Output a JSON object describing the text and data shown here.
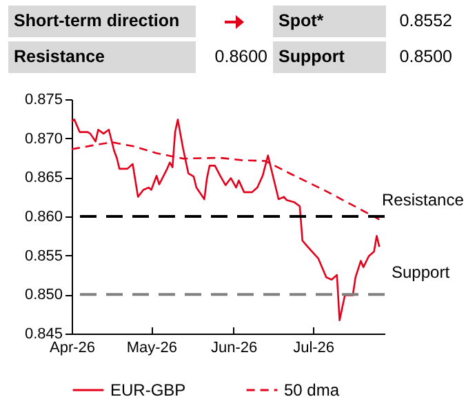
{
  "chart_data": {
    "type": "line",
    "annotations": [
      "Short-term direction",
      "Spot*",
      "0.8552",
      "Resistance",
      "0.8600",
      "Support",
      "0.8500"
    ],
    "xlim": [
      "2026-04-01",
      "2026-07-28"
    ],
    "xticks": [
      {
        "value": "2026-04-01",
        "label": "Apr-26"
      },
      {
        "value": "2026-05-01",
        "label": "May-26"
      },
      {
        "value": "2026-06-01",
        "label": "Jun-26"
      },
      {
        "value": "2026-07-01",
        "label": "Jul-26"
      }
    ],
    "ylim": [
      0.845,
      0.875
    ],
    "yticks": [
      0.845,
      {
        "value": 0.85,
        "label": "0.850"
      },
      0.855,
      {
        "value": 0.86,
        "label": "0.860"
      },
      0.865,
      {
        "value": 0.87,
        "label": "0.870"
      },
      0.875
    ],
    "grid": false,
    "legend": "bottom",
    "series": [
      {
        "name": "EUR-GBP",
        "color": "#e3001b",
        "line_style": "solid",
        "x": [
          "2026-04-01",
          "2026-04-02",
          "2026-04-04",
          "2026-04-07",
          "2026-04-08",
          "2026-04-10",
          "2026-04-11",
          "2026-04-13",
          "2026-04-15",
          "2026-04-17",
          "2026-04-18",
          "2026-04-19",
          "2026-04-22",
          "2026-04-24",
          "2026-04-26",
          "2026-04-28",
          "2026-04-30",
          "2026-05-01",
          "2026-05-03",
          "2026-05-04",
          "2026-05-07",
          "2026-05-08",
          "2026-05-09",
          "2026-05-10",
          "2026-05-11",
          "2026-05-13",
          "2026-05-15",
          "2026-05-17",
          "2026-05-18",
          "2026-05-21",
          "2026-05-22",
          "2026-05-23",
          "2026-05-25",
          "2026-05-27",
          "2026-05-29",
          "2026-05-31",
          "2026-06-02",
          "2026-06-03",
          "2026-06-05",
          "2026-06-08",
          "2026-06-10",
          "2026-06-12",
          "2026-06-14",
          "2026-06-15",
          "2026-06-18",
          "2026-06-20",
          "2026-06-21",
          "2026-06-24",
          "2026-06-26",
          "2026-06-27",
          "2026-06-29",
          "2026-07-03",
          "2026-07-06",
          "2026-07-08",
          "2026-07-10",
          "2026-07-11",
          "2026-07-13",
          "2026-07-16",
          "2026-07-17",
          "2026-07-19",
          "2026-07-20",
          "2026-07-22",
          "2026-07-24",
          "2026-07-25",
          "2026-07-26"
        ],
        "values": [
          0.8722,
          0.8724,
          0.8708,
          0.8708,
          0.8706,
          0.8696,
          0.8711,
          0.8706,
          0.8711,
          0.8684,
          0.8675,
          0.8661,
          0.8661,
          0.8667,
          0.8625,
          0.8634,
          0.8637,
          0.8634,
          0.8652,
          0.8641,
          0.8661,
          0.8669,
          0.8663,
          0.8708,
          0.8724,
          0.8687,
          0.8655,
          0.8651,
          0.8637,
          0.8622,
          0.8649,
          0.8665,
          0.8665,
          0.8652,
          0.864,
          0.8649,
          0.8637,
          0.8646,
          0.8631,
          0.8631,
          0.8637,
          0.8652,
          0.8678,
          0.8664,
          0.8622,
          0.8625,
          0.8621,
          0.8618,
          0.8613,
          0.8569,
          0.8561,
          0.8546,
          0.8522,
          0.8519,
          0.8525,
          0.8467,
          0.8499,
          0.8499,
          0.8522,
          0.8543,
          0.8535,
          0.8549,
          0.8555,
          0.8575,
          0.8561
        ]
      },
      {
        "name": "50 dma",
        "color": "#e3001b",
        "line_style": "dashed",
        "x": [
          "2026-04-01",
          "2026-04-09",
          "2026-04-16",
          "2026-04-24",
          "2026-05-03",
          "2026-05-13",
          "2026-05-27",
          "2026-06-04",
          "2026-06-13",
          "2026-06-24",
          "2026-07-05",
          "2026-07-15",
          "2026-07-26"
        ],
        "values": [
          0.8686,
          0.8691,
          0.8695,
          0.869,
          0.8681,
          0.8674,
          0.8675,
          0.8672,
          0.8671,
          0.8652,
          0.8634,
          0.8616,
          0.8596
        ]
      }
    ],
    "ref_lines": [
      {
        "axis": "y",
        "value": 0.86,
        "label": "Resistance",
        "color": "#000000",
        "line_style": "dashed"
      },
      {
        "axis": "y",
        "value": 0.85,
        "label": "Support",
        "color": "#808080",
        "line_style": "dashed"
      }
    ]
  }
}
